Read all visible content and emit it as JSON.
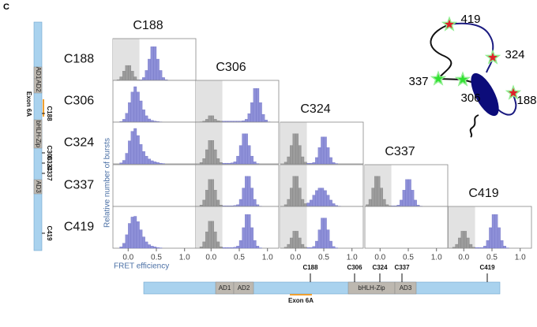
{
  "panel_label": "C",
  "chart_data": {
    "type": "histogram",
    "column_labels": [
      "C188",
      "C306",
      "C324",
      "C337",
      "C419"
    ],
    "row_labels": [
      "C188",
      "C306",
      "C324",
      "C337",
      "C419"
    ],
    "xlabel": "FRET efficiency",
    "ylabel": "Relative number of bursts",
    "bins": [
      -0.25,
      -0.2,
      -0.15,
      -0.1,
      -0.05,
      0,
      0.05,
      0.1,
      0.15,
      0.2,
      0.25,
      0.3,
      0.35,
      0.4,
      0.45,
      0.5,
      0.55,
      0.6,
      0.65,
      0.7,
      0.75,
      0.8,
      0.85,
      0.9,
      0.95,
      1,
      1.05,
      1.1,
      1.15
    ],
    "xlim": [
      -0.27,
      1.2
    ],
    "xticks": [
      {
        "value": 0,
        "label": "0.0"
      },
      {
        "value": 0.5,
        "label": "0.5"
      },
      {
        "value": 1,
        "label": "1.0"
      }
    ],
    "ylim": [
      0,
      100
    ],
    "shade": [
      -0.27,
      0.2
    ],
    "donor_color": "#9c9c9c",
    "fret_color": "#8e90d8",
    "shade_color": "#e2e2e2",
    "rows": [
      [
        {
          "shaded": true,
          "counts": [
            0,
            2,
            10,
            26,
            42,
            42,
            26,
            10,
            2,
            2,
            8,
            28,
            60,
            95,
            95,
            60,
            28,
            8,
            2,
            0,
            0,
            0,
            0,
            0,
            0,
            0,
            0,
            0
          ]
        }
      ],
      [
        {
          "shaded": false,
          "counts": [
            0,
            0,
            2,
            8,
            25,
            55,
            85,
            100,
            85,
            60,
            35,
            18,
            9,
            5,
            3,
            2,
            1,
            0,
            0,
            0,
            0,
            0,
            0,
            0,
            0,
            0,
            0,
            0
          ]
        },
        {
          "shaded": true,
          "counts": [
            0,
            1,
            3,
            8,
            18,
            18,
            8,
            4,
            3,
            3,
            3,
            3,
            3,
            3,
            3,
            3,
            4,
            8,
            24,
            55,
            95,
            95,
            55,
            22,
            6,
            1,
            0,
            0
          ]
        }
      ],
      [
        {
          "shaded": false,
          "counts": [
            0,
            0,
            3,
            10,
            30,
            65,
            92,
            100,
            80,
            55,
            35,
            22,
            14,
            9,
            6,
            4,
            2,
            1,
            0,
            0,
            0,
            0,
            0,
            0,
            0,
            0,
            0,
            0
          ]
        },
        {
          "shaded": true,
          "counts": [
            0,
            4,
            15,
            40,
            66,
            66,
            40,
            15,
            4,
            2,
            2,
            2,
            3,
            6,
            22,
            52,
            85,
            85,
            52,
            22,
            6,
            1,
            0,
            0,
            0,
            0,
            0,
            0
          ]
        },
        {
          "shaded": true,
          "counts": [
            0,
            5,
            20,
            52,
            85,
            85,
            52,
            20,
            5,
            2,
            2,
            4,
            18,
            46,
            76,
            76,
            46,
            18,
            4,
            1,
            0,
            0,
            0,
            0,
            0,
            0,
            0,
            0
          ]
        }
      ],
      [
        null,
        {
          "shaded": true,
          "counts": [
            0,
            4,
            18,
            46,
            76,
            76,
            46,
            18,
            4,
            2,
            2,
            2,
            2,
            3,
            5,
            20,
            52,
            85,
            85,
            52,
            20,
            5,
            1,
            0,
            0,
            0,
            0,
            0
          ]
        },
        {
          "shaded": true,
          "counts": [
            0,
            5,
            20,
            52,
            85,
            85,
            52,
            20,
            8,
            10,
            18,
            32,
            45,
            52,
            52,
            45,
            32,
            18,
            8,
            3,
            1,
            0,
            0,
            0,
            0,
            0,
            0,
            0
          ]
        },
        {
          "shaded": true,
          "counts": [
            5,
            20,
            52,
            85,
            85,
            52,
            20,
            5,
            2,
            2,
            2,
            4,
            18,
            46,
            76,
            76,
            46,
            18,
            4,
            1,
            0,
            0,
            0,
            0,
            0,
            0,
            0,
            0
          ]
        }
      ],
      [
        {
          "shaded": false,
          "counts": [
            0,
            0,
            4,
            14,
            38,
            70,
            88,
            90,
            75,
            52,
            32,
            18,
            10,
            6,
            4,
            2,
            1,
            0,
            0,
            0,
            0,
            0,
            0,
            0,
            0,
            0,
            0,
            0
          ]
        },
        {
          "shaded": true,
          "counts": [
            0,
            4,
            18,
            46,
            76,
            76,
            46,
            18,
            4,
            2,
            2,
            2,
            2,
            3,
            6,
            22,
            58,
            95,
            95,
            58,
            22,
            6,
            1,
            0,
            0,
            0,
            0,
            0
          ]
        },
        {
          "shaded": true,
          "counts": [
            0,
            3,
            11,
            29,
            48,
            48,
            29,
            11,
            3,
            2,
            2,
            5,
            20,
            52,
            85,
            85,
            52,
            20,
            5,
            1,
            0,
            0,
            0,
            0,
            0,
            0,
            0,
            0
          ]
        },
        null,
        {
          "shaded": true,
          "counts": [
            0,
            3,
            11,
            29,
            48,
            48,
            29,
            11,
            3,
            2,
            2,
            2,
            6,
            22,
            58,
            95,
            95,
            58,
            22,
            6,
            1,
            0,
            0,
            0,
            0,
            0,
            0,
            0
          ]
        }
      ]
    ]
  },
  "protein_map": {
    "domains": [
      "AD1",
      "AD2",
      "bHLH-Zip",
      "AD3"
    ],
    "exon": "Exon 6A",
    "cysteines": [
      "C188",
      "C306",
      "C324",
      "C337",
      "C419"
    ]
  },
  "cartoon": {
    "labels": [
      "419",
      "324",
      "337",
      "306",
      "188"
    ]
  }
}
